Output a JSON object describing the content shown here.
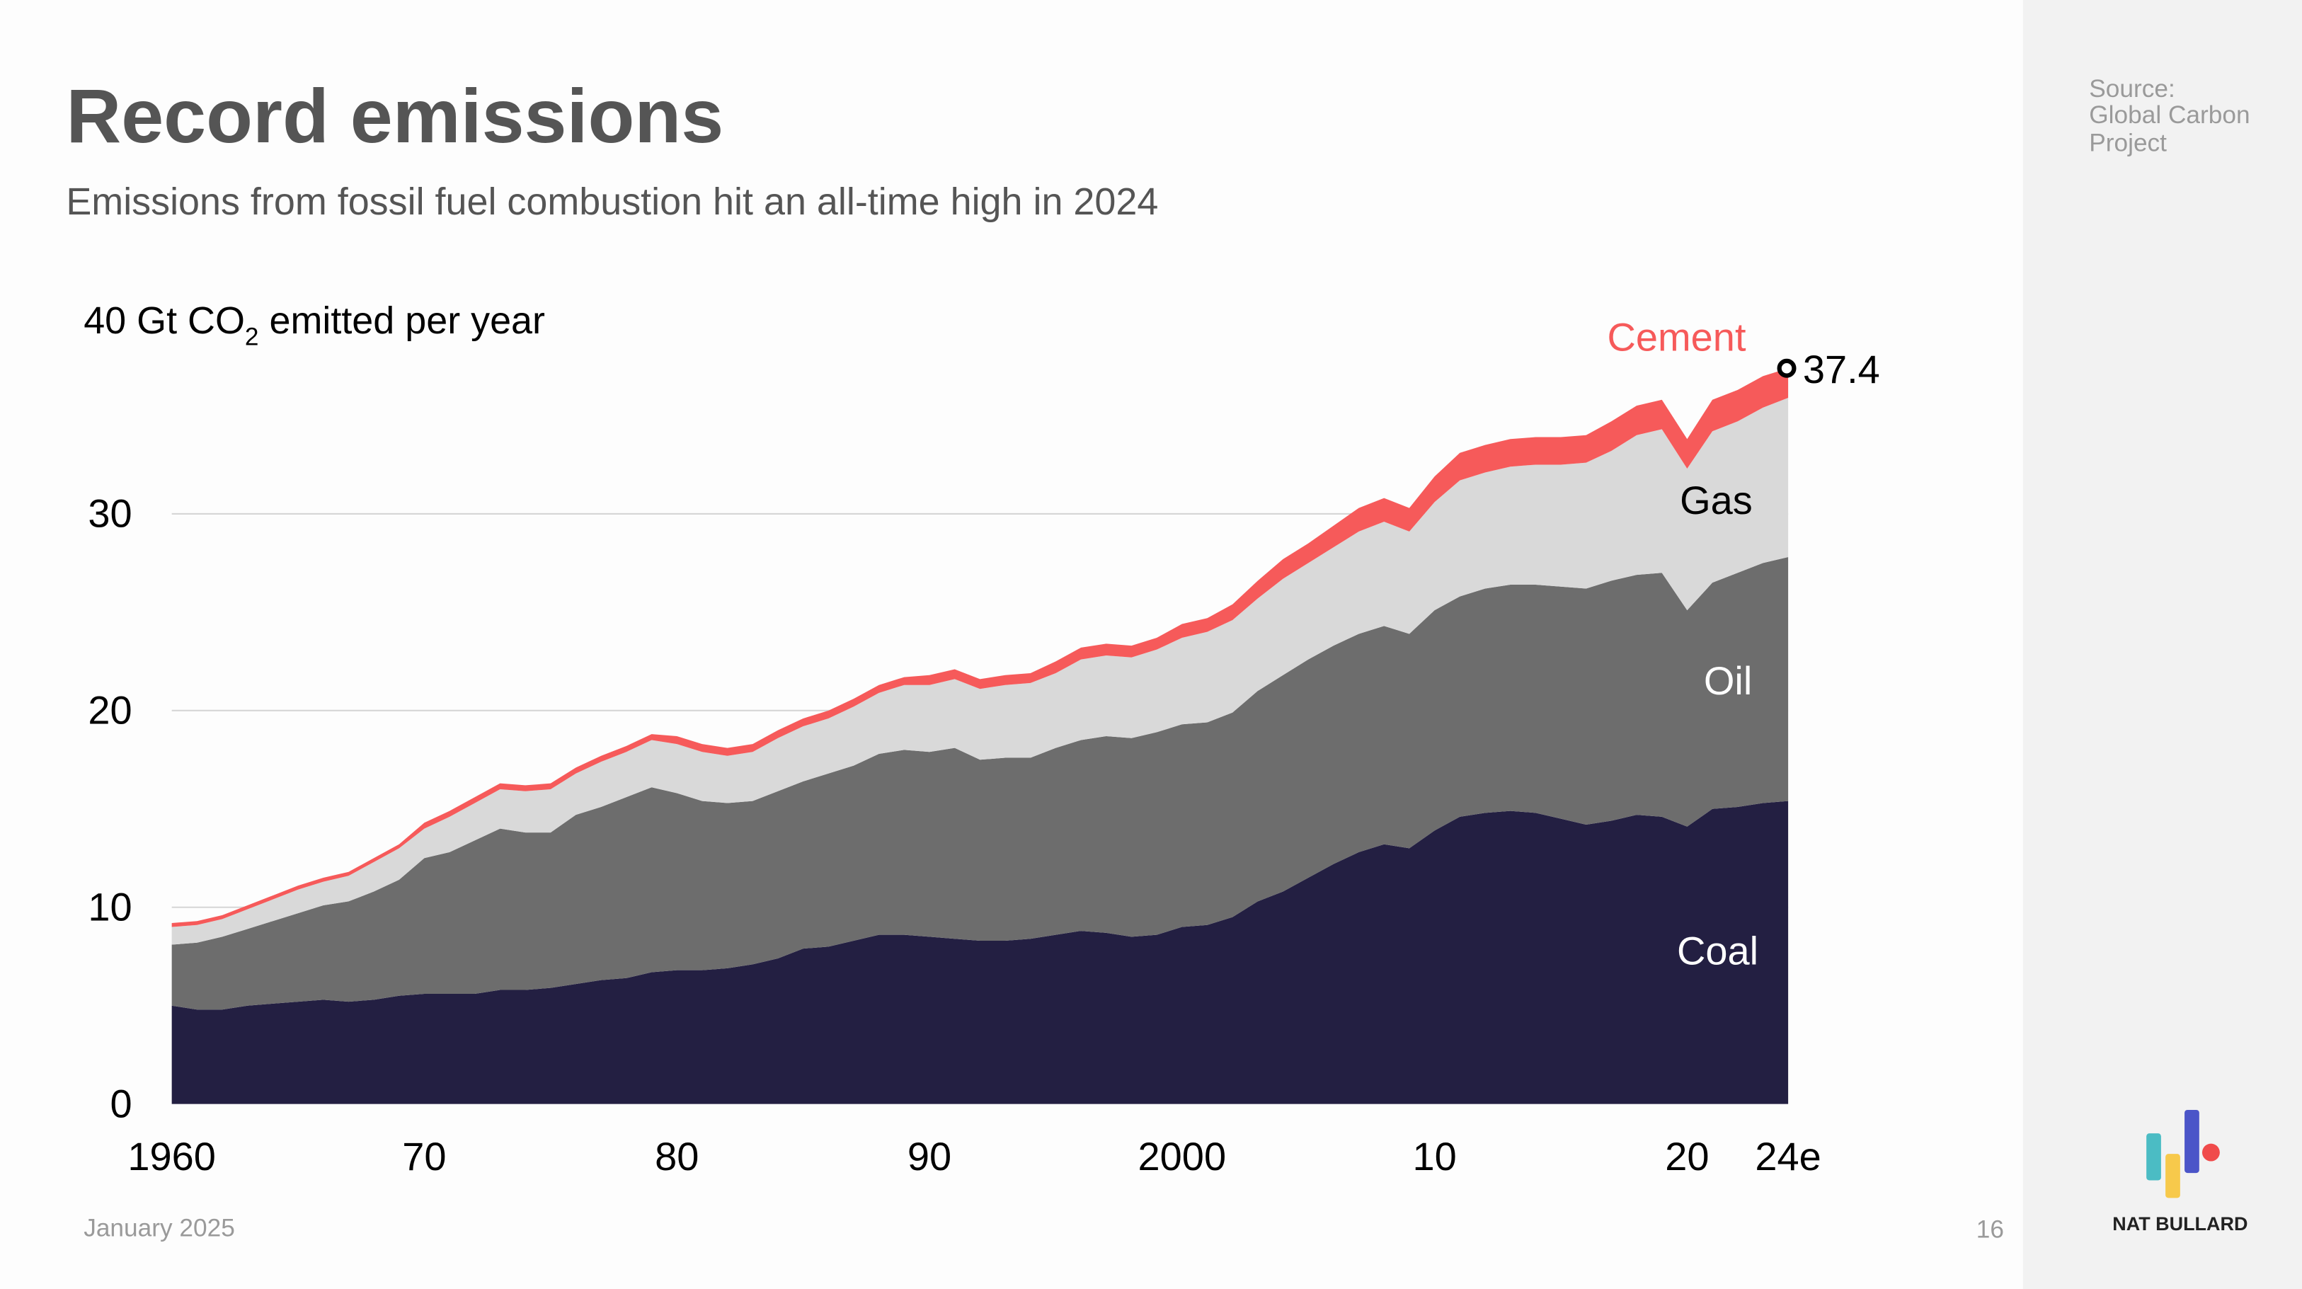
{
  "slide": {
    "title": "Record emissions",
    "subtitle": "Emissions from fossil fuel combustion hit an all-time high in 2024",
    "source_lines": [
      "Source:",
      "Global Carbon",
      "Project"
    ],
    "date": "January 2025",
    "page_number": "16",
    "brand": "NAT BULLARD"
  },
  "colors": {
    "coal": "#231f42",
    "oil": "#6d6d6d",
    "gas": "#d9d9d9",
    "cement": "#f65a5a",
    "side_panel": "#f2f2f2",
    "logo_teal": "#4bbcc4",
    "logo_yellow": "#f7c94b",
    "logo_blue": "#4b55c8",
    "logo_red": "#f04b4b"
  },
  "chart_data": {
    "type": "area",
    "stacked": true,
    "title": "Record emissions",
    "ylabel_parts": [
      "40 Gt CO",
      "2",
      " emitted per year"
    ],
    "ylim": [
      0,
      40
    ],
    "yticks": [
      0,
      10,
      20,
      30
    ],
    "ytick_labels": [
      "0",
      "10",
      "20",
      "30"
    ],
    "xlim": [
      1960,
      2024
    ],
    "xticks": [
      1960,
      1970,
      1980,
      1990,
      2000,
      2010,
      2020,
      2024
    ],
    "xtick_labels": [
      "1960",
      "70",
      "80",
      "90",
      "2000",
      "10",
      "20",
      "24e"
    ],
    "grid": true,
    "x_start": 1960,
    "series": [
      {
        "name": "Coal",
        "values": [
          5.0,
          4.8,
          4.8,
          5.0,
          5.1,
          5.2,
          5.3,
          5.2,
          5.3,
          5.5,
          5.6,
          5.6,
          5.6,
          5.8,
          5.8,
          5.9,
          6.1,
          6.3,
          6.4,
          6.7,
          6.8,
          6.8,
          6.9,
          7.1,
          7.4,
          7.9,
          8.0,
          8.3,
          8.6,
          8.6,
          8.5,
          8.4,
          8.3,
          8.3,
          8.4,
          8.6,
          8.8,
          8.7,
          8.5,
          8.6,
          9.0,
          9.1,
          9.5,
          10.3,
          10.8,
          11.5,
          12.2,
          12.8,
          13.2,
          13.0,
          13.9,
          14.6,
          14.8,
          14.9,
          14.8,
          14.5,
          14.2,
          14.4,
          14.7,
          14.6,
          14.1,
          15.0,
          15.1,
          15.3,
          15.4
        ]
      },
      {
        "name": "Oil",
        "values": [
          3.1,
          3.4,
          3.7,
          3.9,
          4.2,
          4.5,
          4.8,
          5.1,
          5.5,
          5.9,
          6.9,
          7.2,
          7.8,
          8.2,
          8.0,
          7.9,
          8.6,
          8.8,
          9.2,
          9.4,
          9.0,
          8.6,
          8.4,
          8.3,
          8.5,
          8.5,
          8.8,
          8.9,
          9.2,
          9.4,
          9.4,
          9.7,
          9.2,
          9.3,
          9.2,
          9.5,
          9.7,
          10.0,
          10.1,
          10.3,
          10.3,
          10.3,
          10.4,
          10.7,
          11.0,
          11.1,
          11.1,
          11.1,
          11.1,
          10.9,
          11.2,
          11.2,
          11.4,
          11.5,
          11.6,
          11.8,
          12.0,
          12.2,
          12.2,
          12.4,
          11.0,
          11.5,
          11.9,
          12.2,
          12.4
        ]
      },
      {
        "name": "Gas",
        "values": [
          0.9,
          0.9,
          0.9,
          1.0,
          1.1,
          1.2,
          1.2,
          1.3,
          1.5,
          1.6,
          1.5,
          1.8,
          1.9,
          2.0,
          2.1,
          2.2,
          2.1,
          2.3,
          2.3,
          2.4,
          2.5,
          2.5,
          2.4,
          2.5,
          2.7,
          2.8,
          2.8,
          3.0,
          3.1,
          3.3,
          3.4,
          3.5,
          3.6,
          3.7,
          3.8,
          3.8,
          4.1,
          4.1,
          4.1,
          4.2,
          4.4,
          4.6,
          4.7,
          4.7,
          4.9,
          4.9,
          5.0,
          5.2,
          5.3,
          5.2,
          5.5,
          5.9,
          5.9,
          6.0,
          6.1,
          6.2,
          6.4,
          6.6,
          7.1,
          7.3,
          7.2,
          7.7,
          7.7,
          7.9,
          8.1
        ]
      },
      {
        "name": "Cement",
        "values": [
          0.2,
          0.2,
          0.2,
          0.2,
          0.2,
          0.2,
          0.2,
          0.2,
          0.2,
          0.2,
          0.3,
          0.3,
          0.3,
          0.3,
          0.3,
          0.3,
          0.3,
          0.3,
          0.3,
          0.3,
          0.4,
          0.4,
          0.4,
          0.4,
          0.4,
          0.4,
          0.4,
          0.4,
          0.4,
          0.4,
          0.5,
          0.5,
          0.5,
          0.5,
          0.5,
          0.6,
          0.6,
          0.6,
          0.6,
          0.6,
          0.7,
          0.7,
          0.8,
          0.9,
          1.0,
          1.0,
          1.1,
          1.2,
          1.2,
          1.2,
          1.3,
          1.4,
          1.4,
          1.4,
          1.4,
          1.4,
          1.4,
          1.5,
          1.5,
          1.5,
          1.5,
          1.6,
          1.6,
          1.6,
          1.5
        ]
      }
    ],
    "annotations": [
      {
        "text": "Cement",
        "series": "Cement"
      },
      {
        "text": "Gas",
        "series": "Gas"
      },
      {
        "text": "Oil",
        "series": "Oil"
      },
      {
        "text": "Coal",
        "series": "Coal"
      },
      {
        "text": "37.4",
        "x": 2024,
        "y": 37.4
      }
    ]
  }
}
